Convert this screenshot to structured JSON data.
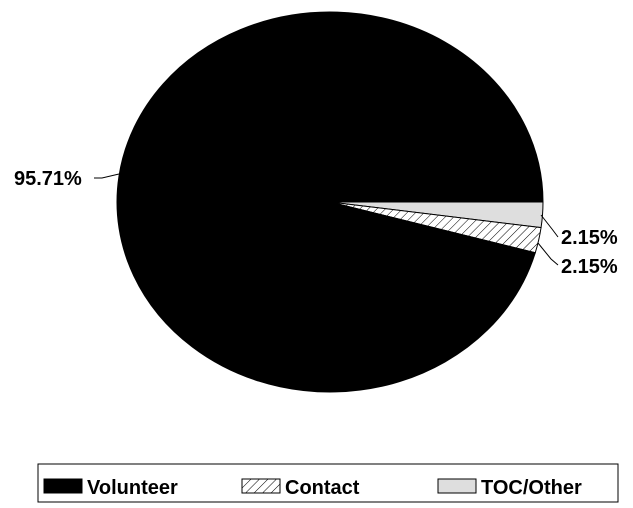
{
  "chart_data": {
    "type": "pie",
    "title": "",
    "slices": [
      {
        "name": "Volunteer",
        "value": 95.71,
        "label": "95.71%",
        "color": "#000000",
        "pattern": "solid"
      },
      {
        "name": "Contact",
        "value": 2.15,
        "label": "2.15%",
        "color": "#ffffff",
        "pattern": "hatch"
      },
      {
        "name": "TOC/Other",
        "value": 2.15,
        "label": "2.15%",
        "color": "#dedede",
        "pattern": "solid"
      }
    ],
    "legend": {
      "position": "bottom",
      "entries": [
        "Volunteer",
        "Contact",
        "TOC/Other"
      ]
    }
  }
}
